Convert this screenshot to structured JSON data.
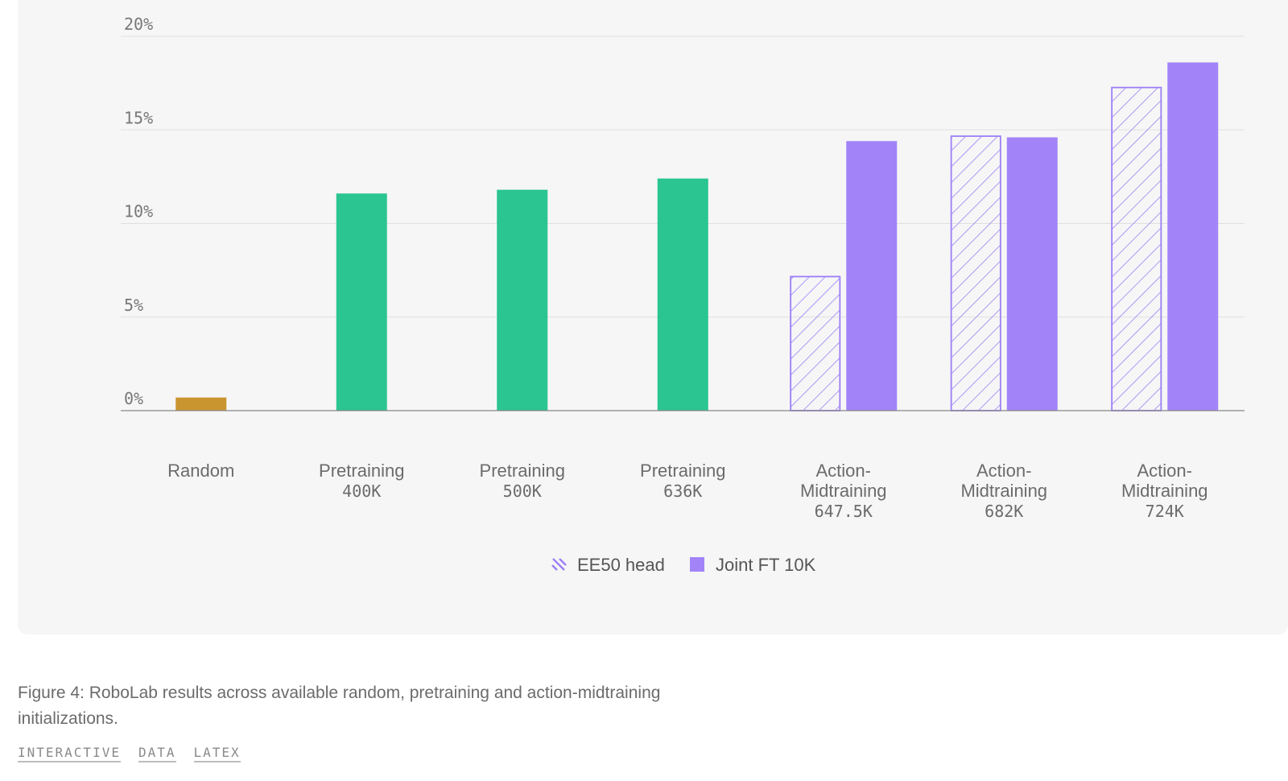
{
  "chart_data": {
    "type": "bar",
    "categories": [
      [
        "Random"
      ],
      [
        "Pretraining",
        "400K"
      ],
      [
        "Pretraining",
        "500K"
      ],
      [
        "Pretraining",
        "636K"
      ],
      [
        "Action-",
        "Midtraining",
        "647.5K"
      ],
      [
        "Action-",
        "Midtraining",
        "682K"
      ],
      [
        "Action-",
        "Midtraining",
        "724K"
      ]
    ],
    "series": [
      {
        "name": "",
        "style": "solid",
        "values": [
          0.7,
          11.6,
          11.8,
          12.4,
          null,
          null,
          null
        ],
        "colors": [
          "#c9952f",
          "#2bc591",
          "#2bc591",
          "#2bc591",
          null,
          null,
          null
        ]
      },
      {
        "name": "EE50 head",
        "style": "hatched",
        "color": "#9b7ff5",
        "values": [
          null,
          null,
          null,
          null,
          7.2,
          14.7,
          17.3
        ]
      },
      {
        "name": "Joint FT 10K",
        "style": "solid",
        "color": "#a284f8",
        "values": [
          null,
          null,
          null,
          null,
          14.4,
          14.6,
          18.6
        ]
      }
    ],
    "yticks": [
      "0%",
      "5%",
      "10%",
      "15%",
      "20%"
    ],
    "ylim": [
      0,
      20
    ],
    "grid": true,
    "legend": [
      {
        "label": "EE50 head",
        "style": "hatched",
        "color": "#9b7ff5"
      },
      {
        "label": "Joint FT 10K",
        "style": "solid",
        "color": "#a284f8"
      }
    ],
    "legend_position": "bottom-center",
    "title": "",
    "xlabel": "",
    "ylabel": ""
  },
  "caption": "Figure 4: RoboLab results across available random, pretraining and action-midtraining initializations.",
  "links": {
    "interactive": "INTERACTIVE",
    "data": "DATA",
    "latex": "LATEX"
  },
  "colors": {
    "panel_background": "#f6f6f6",
    "gridline": "#e0e0e0",
    "axis": "#888888"
  }
}
